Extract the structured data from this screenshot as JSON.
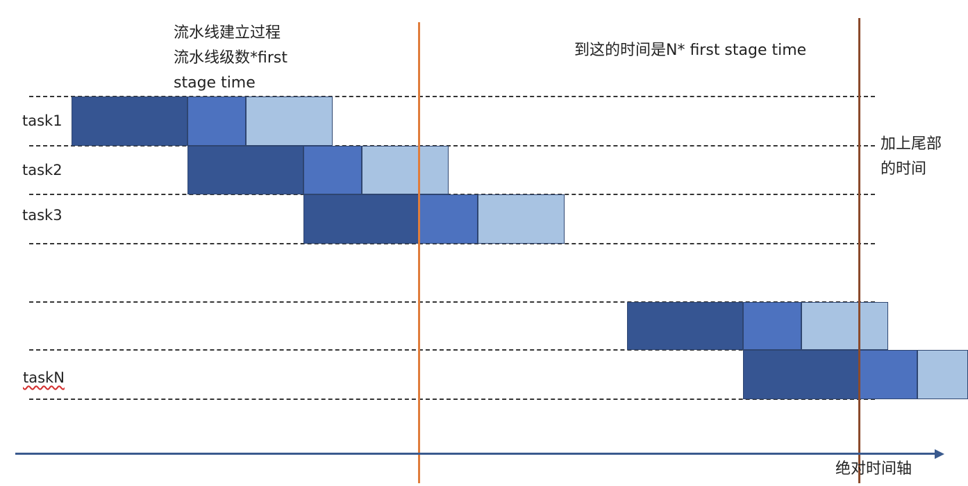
{
  "annotations": {
    "setup_line1": "流水线建立过程",
    "setup_line2": "流水线级数*first",
    "setup_line3": "stage time",
    "arrival_note": "到这的时间是N* first stage time",
    "tail_line1": "加上尾部",
    "tail_line2": "的时间",
    "axis_label": "绝对时间轴"
  },
  "tasks": [
    {
      "label": "task1"
    },
    {
      "label": "task2"
    },
    {
      "label": "task3"
    },
    {
      "label": "taskN",
      "spellcheck_underline": true
    }
  ],
  "colors": {
    "stage1": "#365592",
    "stage2": "#4d72bf",
    "stage3": "#a8c3e2",
    "marker_setup": "#e07d3c",
    "marker_end": "#8b4a2b",
    "axis": "#3a5a8e"
  }
}
